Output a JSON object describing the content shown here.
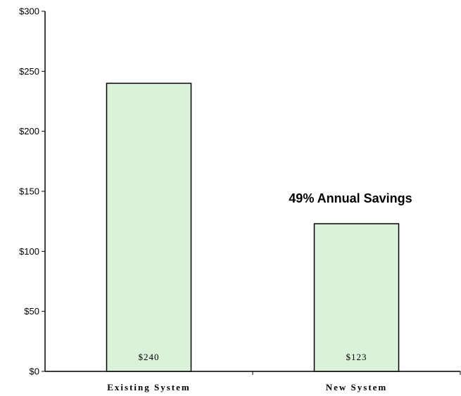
{
  "chart_data": {
    "type": "bar",
    "categories": [
      "Existing System",
      "New System"
    ],
    "values": [
      240,
      123
    ],
    "data_labels": [
      "$240",
      "$123"
    ],
    "annotation": "49% Annual Savings",
    "ylim": [
      0,
      300
    ],
    "yticks": [
      0,
      50,
      100,
      150,
      200,
      250,
      300
    ],
    "ytick_labels": [
      "$0",
      "$50",
      "$100",
      "$150",
      "$200",
      "$250",
      "$300"
    ],
    "grid": false,
    "legend": "none",
    "colors": {
      "bar_fill": "#d9f2d9",
      "bar_stroke": "#000000",
      "axis": "#000000"
    }
  }
}
